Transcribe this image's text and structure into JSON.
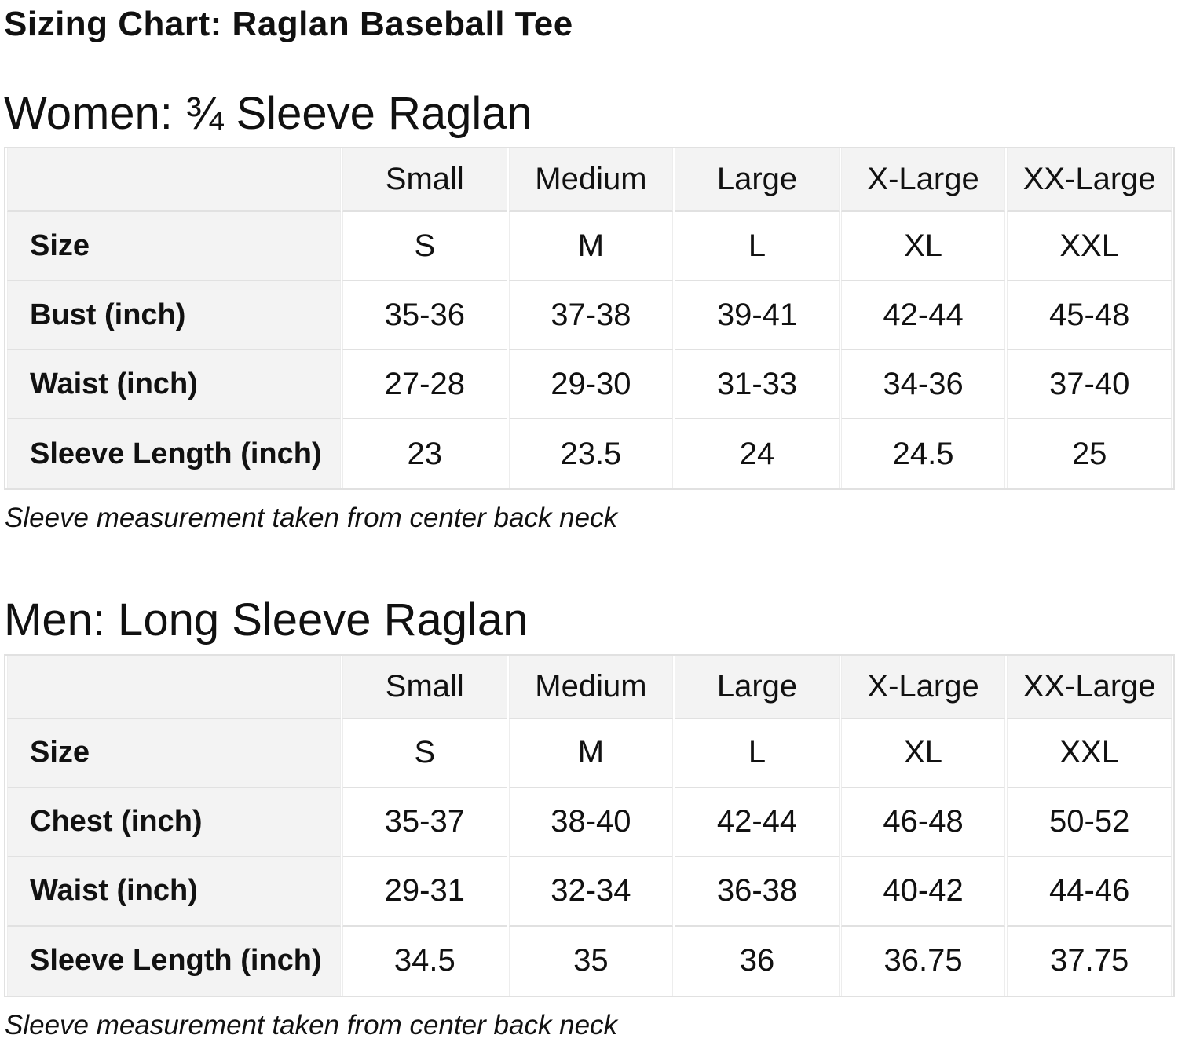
{
  "page": {
    "title": "Sizing Chart: Raglan Baseball Tee"
  },
  "colors": {
    "page_bg": "#ffffff",
    "label_cell_bg": "#f3f3f3",
    "table_border": "#e1e1e1",
    "text": "#111111"
  },
  "sections": [
    {
      "heading": "Women: ¾ Sleeve Raglan",
      "note": "Sleeve measurement taken from center back neck",
      "table": {
        "columns": [
          "",
          "Small",
          "Medium",
          "Large",
          "X-Large",
          "XX-Large"
        ],
        "rows": [
          {
            "label": "Size",
            "values": [
              "S",
              "M",
              "L",
              "XL",
              "XXL"
            ]
          },
          {
            "label": "Bust (inch)",
            "values": [
              "35-36",
              "37-38",
              "39-41",
              "42-44",
              "45-48"
            ]
          },
          {
            "label": "Waist (inch)",
            "values": [
              "27-28",
              "29-30",
              "31-33",
              "34-36",
              "37-40"
            ]
          },
          {
            "label": "Sleeve Length (inch)",
            "values": [
              "23",
              "23.5",
              "24",
              "24.5",
              "25"
            ]
          }
        ]
      }
    },
    {
      "heading": "Men: Long Sleeve Raglan",
      "note": "Sleeve measurement taken from center back neck",
      "table": {
        "columns": [
          "",
          "Small",
          "Medium",
          "Large",
          "X-Large",
          "XX-Large"
        ],
        "rows": [
          {
            "label": "Size",
            "values": [
              "S",
              "M",
              "L",
              "XL",
              "XXL"
            ]
          },
          {
            "label": "Chest (inch)",
            "values": [
              "35-37",
              "38-40",
              "42-44",
              "46-48",
              "50-52"
            ]
          },
          {
            "label": "Waist (inch)",
            "values": [
              "29-31",
              "32-34",
              "36-38",
              "40-42",
              "44-46"
            ]
          },
          {
            "label": "Sleeve Length (inch)",
            "values": [
              "34.5",
              "35",
              "36",
              "36.75",
              "37.75"
            ]
          }
        ]
      }
    }
  ]
}
